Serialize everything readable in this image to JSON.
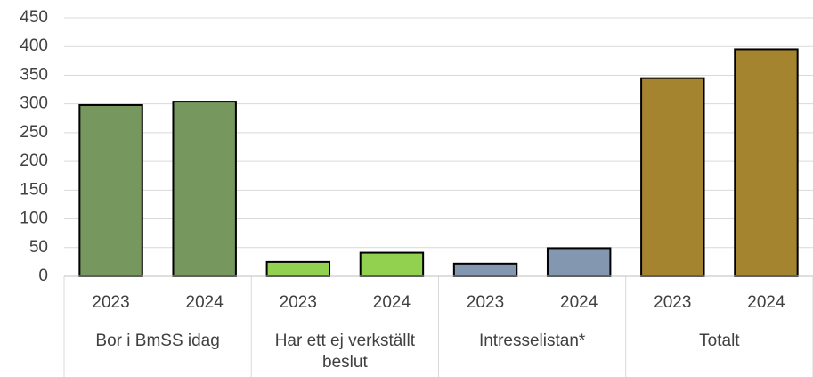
{
  "chart_data": {
    "type": "bar",
    "groups": [
      {
        "name": "Bor i BmSS idag",
        "color": "#76985e",
        "categories": [
          "2023",
          "2024"
        ],
        "values": [
          298,
          304
        ]
      },
      {
        "name": "Har ett ej verkställt beslut",
        "color": "#92d050",
        "categories": [
          "2023",
          "2024"
        ],
        "values": [
          25,
          41
        ]
      },
      {
        "name": "Intresselistan*",
        "color": "#8497b0",
        "categories": [
          "2023",
          "2024"
        ],
        "values": [
          22,
          49
        ]
      },
      {
        "name": "Totalt",
        "color": "#a5842f",
        "categories": [
          "2023",
          "2024"
        ],
        "values": [
          345,
          395
        ]
      }
    ],
    "ylim": [
      0,
      450
    ],
    "yticks": [
      0,
      50,
      100,
      150,
      200,
      250,
      300,
      350,
      400,
      450
    ],
    "grid": true
  }
}
